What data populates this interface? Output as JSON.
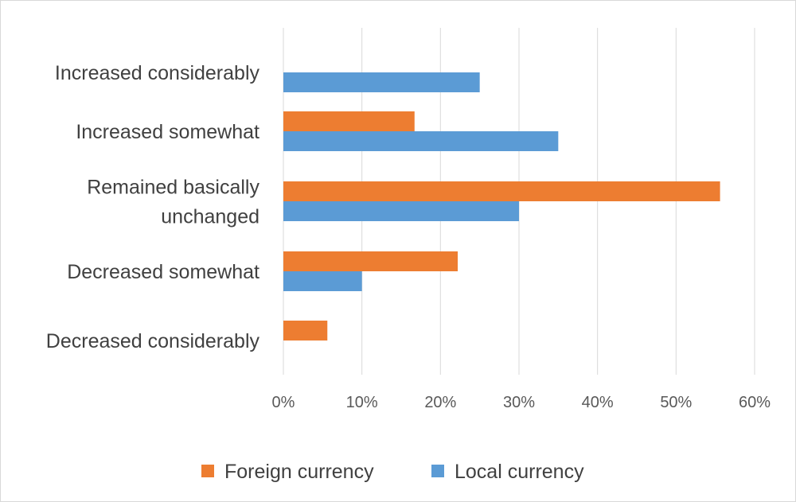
{
  "chart_data": {
    "type": "bar",
    "orientation": "horizontal",
    "categories": [
      "Increased considerably",
      "Increased somewhat",
      "Remained basically unchanged",
      "Decreased somewhat",
      "Decreased considerably"
    ],
    "category_label_lines": [
      [
        "Increased considerably"
      ],
      [
        "Increased somewhat"
      ],
      [
        "Remained basically",
        "unchanged"
      ],
      [
        "Decreased somewhat"
      ],
      [
        "Decreased considerably"
      ]
    ],
    "series": [
      {
        "name": "Foreign currency",
        "color": "#ed7d31",
        "values": [
          0,
          16.7,
          55.6,
          22.2,
          5.6
        ]
      },
      {
        "name": "Local currency",
        "color": "#5b9bd5",
        "values": [
          25,
          35,
          30,
          10,
          0
        ]
      }
    ],
    "xlim": [
      0,
      60
    ],
    "x_ticks": [
      0,
      10,
      20,
      30,
      40,
      50,
      60
    ],
    "x_tick_labels": [
      "0%",
      "10%",
      "20%",
      "30%",
      "40%",
      "50%",
      "60%"
    ],
    "grid": "vertical",
    "legend_position": "bottom",
    "title": "",
    "xlabel": "",
    "ylabel": ""
  }
}
